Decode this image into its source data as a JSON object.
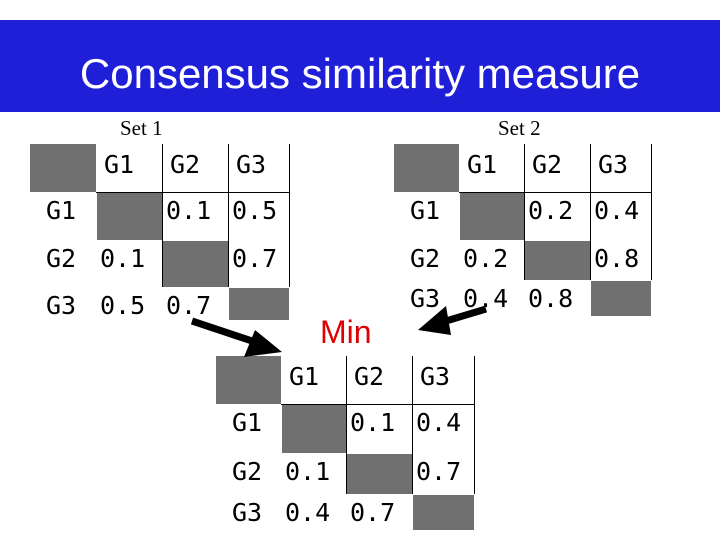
{
  "title": "Consensus similarity measure",
  "set1": {
    "label": "Set 1",
    "columns": [
      "G1",
      "G2",
      "G3"
    ],
    "rows": [
      {
        "name": "G1",
        "cells": [
          "",
          "0.1",
          "0.5"
        ]
      },
      {
        "name": "G2",
        "cells": [
          "0.1",
          "",
          "0.7"
        ]
      },
      {
        "name": "G3",
        "cells": [
          "0.5",
          "0.7",
          ""
        ]
      }
    ]
  },
  "set2": {
    "label": "Set 2",
    "columns": [
      "G1",
      "G2",
      "G3"
    ],
    "rows": [
      {
        "name": "G1",
        "cells": [
          "",
          "0.2",
          "0.4"
        ]
      },
      {
        "name": "G2",
        "cells": [
          "0.2",
          "",
          "0.8"
        ]
      },
      {
        "name": "G3",
        "cells": [
          "0.4",
          "0.8",
          ""
        ]
      }
    ]
  },
  "min_label": "Min",
  "result": {
    "columns": [
      "G1",
      "G2",
      "G3"
    ],
    "rows": [
      {
        "name": "G1",
        "cells": [
          "",
          "0.1",
          "0.4"
        ]
      },
      {
        "name": "G2",
        "cells": [
          "0.1",
          "",
          "0.7"
        ]
      },
      {
        "name": "G3",
        "cells": [
          "0.4",
          "0.7",
          ""
        ]
      }
    ]
  },
  "colors": {
    "title_bar": "#1f1fd8",
    "diagonal_cell": "#707070",
    "min_label": "#e00000",
    "arrow": "#000000"
  }
}
